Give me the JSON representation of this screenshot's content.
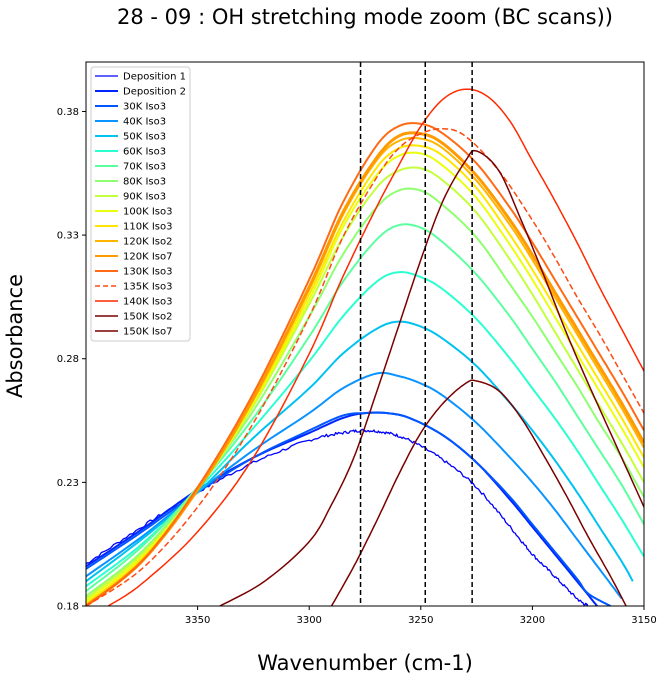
{
  "chart_data": {
    "type": "line",
    "title": "28 - 09 : OH stretching mode zoom (BC scans))",
    "xlabel": "Wavenumber (cm-1)",
    "ylabel": "Absorbance",
    "xlim": [
      3400,
      3150
    ],
    "ylim": [
      0.18,
      0.4
    ],
    "x_reversed": true,
    "xticks": [
      3350,
      3300,
      3250,
      3200,
      3150
    ],
    "xtick_labels": [
      "3350",
      "3300",
      "3250",
      "3200",
      "3150"
    ],
    "yticks": [
      0.18,
      0.23,
      0.28,
      0.33,
      0.38
    ],
    "ytick_labels": [
      "0.18",
      "0.23",
      "0.28",
      "0.33",
      "0.38"
    ],
    "grid": false,
    "legend_position": "top-left",
    "vertical_lines": [
      3277,
      3248,
      3227
    ],
    "series": [
      {
        "name": "Deposition 1",
        "color": "#0000ff",
        "width": 1.3,
        "dash": "solid",
        "noisy": true,
        "x": [
          3400,
          3375,
          3350,
          3325,
          3300,
          3285,
          3275,
          3265,
          3255,
          3240,
          3225,
          3210,
          3200,
          3190,
          3180,
          3175
        ],
        "y": [
          0.197,
          0.212,
          0.226,
          0.238,
          0.247,
          0.25,
          0.251,
          0.25,
          0.247,
          0.239,
          0.228,
          0.212,
          0.201,
          0.192,
          0.183,
          0.18
        ]
      },
      {
        "name": "Deposition 2",
        "color": "#0026ff",
        "width": 2.0,
        "dash": "solid",
        "x": [
          3400,
          3375,
          3350,
          3325,
          3300,
          3285,
          3275,
          3265,
          3255,
          3240,
          3225,
          3210,
          3200,
          3190,
          3180,
          3171
        ],
        "y": [
          0.196,
          0.211,
          0.227,
          0.24,
          0.25,
          0.256,
          0.258,
          0.258,
          0.256,
          0.249,
          0.238,
          0.223,
          0.212,
          0.201,
          0.19,
          0.18
        ]
      },
      {
        "name": "30K Iso3",
        "color": "#0056ff",
        "width": 2.0,
        "dash": "solid",
        "x": [
          3400,
          3375,
          3350,
          3325,
          3300,
          3285,
          3275,
          3265,
          3255,
          3240,
          3225,
          3210,
          3200,
          3190,
          3180,
          3175,
          3165
        ],
        "y": [
          0.195,
          0.21,
          0.226,
          0.24,
          0.251,
          0.257,
          0.258,
          0.258,
          0.256,
          0.249,
          0.238,
          0.224,
          0.213,
          0.202,
          0.191,
          0.185,
          0.18
        ]
      },
      {
        "name": "40K Iso3",
        "color": "#0a94ff",
        "width": 2.0,
        "dash": "solid",
        "x": [
          3400,
          3375,
          3350,
          3325,
          3300,
          3285,
          3270,
          3260,
          3250,
          3240,
          3225,
          3210,
          3200,
          3190,
          3180,
          3170,
          3160
        ],
        "y": [
          0.192,
          0.208,
          0.226,
          0.243,
          0.258,
          0.268,
          0.274,
          0.273,
          0.27,
          0.265,
          0.254,
          0.24,
          0.23,
          0.219,
          0.207,
          0.195,
          0.183
        ]
      },
      {
        "name": "50K Iso3",
        "color": "#00c2f0",
        "width": 2.0,
        "dash": "solid",
        "x": [
          3400,
          3375,
          3350,
          3325,
          3300,
          3285,
          3270,
          3260,
          3250,
          3240,
          3225,
          3210,
          3200,
          3190,
          3180,
          3170,
          3160,
          3155
        ],
        "y": [
          0.19,
          0.207,
          0.226,
          0.248,
          0.268,
          0.282,
          0.292,
          0.295,
          0.293,
          0.288,
          0.277,
          0.262,
          0.251,
          0.239,
          0.226,
          0.212,
          0.198,
          0.19
        ]
      },
      {
        "name": "60K Iso3",
        "color": "#2affd0",
        "width": 2.0,
        "dash": "solid",
        "x": [
          3400,
          3375,
          3350,
          3325,
          3300,
          3285,
          3270,
          3260,
          3250,
          3240,
          3225,
          3210,
          3200,
          3190,
          3180,
          3170,
          3160,
          3150
        ],
        "y": [
          0.188,
          0.205,
          0.227,
          0.252,
          0.279,
          0.297,
          0.311,
          0.315,
          0.313,
          0.308,
          0.296,
          0.28,
          0.268,
          0.256,
          0.243,
          0.229,
          0.215,
          0.2
        ]
      },
      {
        "name": "70K Iso3",
        "color": "#5cffa0",
        "width": 2.0,
        "dash": "solid",
        "x": [
          3400,
          3375,
          3350,
          3325,
          3300,
          3285,
          3270,
          3260,
          3250,
          3240,
          3225,
          3210,
          3200,
          3190,
          3180,
          3170,
          3160,
          3150
        ],
        "y": [
          0.186,
          0.204,
          0.228,
          0.256,
          0.289,
          0.311,
          0.328,
          0.334,
          0.333,
          0.327,
          0.314,
          0.297,
          0.284,
          0.271,
          0.257,
          0.243,
          0.229,
          0.213
        ]
      },
      {
        "name": "80K Iso3",
        "color": "#8fff70",
        "width": 2.0,
        "dash": "solid",
        "x": [
          3400,
          3375,
          3350,
          3325,
          3300,
          3285,
          3270,
          3260,
          3250,
          3240,
          3225,
          3210,
          3200,
          3190,
          3180,
          3170,
          3160,
          3150
        ],
        "y": [
          0.184,
          0.202,
          0.228,
          0.259,
          0.297,
          0.322,
          0.341,
          0.348,
          0.348,
          0.342,
          0.329,
          0.31,
          0.297,
          0.283,
          0.269,
          0.254,
          0.24,
          0.224
        ]
      },
      {
        "name": "90K Iso3",
        "color": "#c3ff3c",
        "width": 2.0,
        "dash": "solid",
        "x": [
          3400,
          3375,
          3350,
          3325,
          3300,
          3285,
          3270,
          3260,
          3250,
          3240,
          3225,
          3210,
          3200,
          3190,
          3180,
          3170,
          3160,
          3150
        ],
        "y": [
          0.183,
          0.201,
          0.227,
          0.261,
          0.302,
          0.329,
          0.349,
          0.356,
          0.357,
          0.352,
          0.339,
          0.32,
          0.306,
          0.291,
          0.276,
          0.261,
          0.246,
          0.23
        ]
      },
      {
        "name": "100K Iso3",
        "color": "#eaff0e",
        "width": 2.0,
        "dash": "solid",
        "x": [
          3400,
          3375,
          3350,
          3325,
          3300,
          3285,
          3270,
          3260,
          3250,
          3240,
          3225,
          3210,
          3200,
          3190,
          3180,
          3170,
          3160,
          3150
        ],
        "y": [
          0.182,
          0.2,
          0.227,
          0.262,
          0.304,
          0.333,
          0.354,
          0.362,
          0.363,
          0.358,
          0.345,
          0.326,
          0.312,
          0.297,
          0.282,
          0.267,
          0.252,
          0.236
        ]
      },
      {
        "name": "110K Iso3",
        "color": "#ffe600",
        "width": 2.0,
        "dash": "solid",
        "x": [
          3400,
          3375,
          3350,
          3325,
          3300,
          3285,
          3270,
          3260,
          3250,
          3240,
          3225,
          3210,
          3200,
          3190,
          3180,
          3170,
          3160,
          3150
        ],
        "y": [
          0.181,
          0.199,
          0.227,
          0.263,
          0.306,
          0.335,
          0.357,
          0.365,
          0.366,
          0.362,
          0.349,
          0.33,
          0.316,
          0.301,
          0.286,
          0.271,
          0.256,
          0.24
        ]
      },
      {
        "name": "120K Iso2",
        "color": "#ffb400",
        "width": 2.0,
        "dash": "solid",
        "x": [
          3400,
          3375,
          3350,
          3325,
          3300,
          3285,
          3270,
          3260,
          3250,
          3240,
          3225,
          3210,
          3200,
          3190,
          3180,
          3170,
          3160,
          3150
        ],
        "y": [
          0.18,
          0.198,
          0.227,
          0.264,
          0.308,
          0.338,
          0.36,
          0.368,
          0.369,
          0.365,
          0.352,
          0.334,
          0.32,
          0.305,
          0.29,
          0.275,
          0.26,
          0.244
        ]
      },
      {
        "name": "120K Iso7",
        "color": "#ff9a00",
        "width": 3.0,
        "dash": "solid",
        "x": [
          3400,
          3375,
          3350,
          3325,
          3300,
          3285,
          3270,
          3260,
          3250,
          3240,
          3225,
          3210,
          3200,
          3190,
          3180,
          3170,
          3160,
          3150
        ],
        "y": [
          0.18,
          0.198,
          0.227,
          0.264,
          0.309,
          0.339,
          0.361,
          0.37,
          0.371,
          0.367,
          0.354,
          0.336,
          0.322,
          0.307,
          0.292,
          0.277,
          0.262,
          0.246
        ]
      },
      {
        "name": "130K Iso3",
        "color": "#ff6a14",
        "width": 2.0,
        "dash": "solid",
        "x": [
          3400,
          3375,
          3350,
          3325,
          3300,
          3285,
          3270,
          3260,
          3250,
          3240,
          3225,
          3210,
          3200,
          3190,
          3180,
          3170,
          3160,
          3150
        ],
        "y": [
          0.18,
          0.198,
          0.228,
          0.266,
          0.312,
          0.343,
          0.366,
          0.374,
          0.375,
          0.371,
          0.359,
          0.341,
          0.327,
          0.312,
          0.297,
          0.282,
          0.267,
          0.251
        ]
      },
      {
        "name": "135K Iso3",
        "color": "#ff4a10",
        "width": 1.5,
        "dash": "dashed",
        "x": [
          3400,
          3375,
          3350,
          3325,
          3300,
          3285,
          3270,
          3260,
          3250,
          3240,
          3230,
          3215,
          3200,
          3190,
          3180,
          3170,
          3160,
          3150
        ],
        "y": [
          0.18,
          0.195,
          0.22,
          0.254,
          0.297,
          0.329,
          0.353,
          0.365,
          0.371,
          0.373,
          0.37,
          0.356,
          0.336,
          0.321,
          0.305,
          0.29,
          0.274,
          0.258
        ]
      },
      {
        "name": "140K Iso3",
        "color": "#ff2a00",
        "width": 1.5,
        "dash": "solid",
        "x": [
          3390,
          3375,
          3350,
          3325,
          3300,
          3285,
          3270,
          3260,
          3250,
          3240,
          3230,
          3220,
          3210,
          3200,
          3190,
          3180,
          3170,
          3160,
          3150
        ],
        "y": [
          0.18,
          0.189,
          0.21,
          0.24,
          0.282,
          0.313,
          0.341,
          0.358,
          0.374,
          0.385,
          0.389,
          0.386,
          0.376,
          0.36,
          0.344,
          0.327,
          0.309,
          0.292,
          0.275
        ]
      },
      {
        "name": "150K Iso2",
        "color": "#7a0000",
        "width": 1.5,
        "dash": "solid",
        "x": [
          3290,
          3280,
          3270,
          3260,
          3250,
          3240,
          3230,
          3225,
          3215,
          3205,
          3195,
          3185,
          3175,
          3165,
          3158
        ],
        "y": [
          0.18,
          0.196,
          0.214,
          0.233,
          0.25,
          0.262,
          0.27,
          0.271,
          0.267,
          0.256,
          0.241,
          0.225,
          0.208,
          0.192,
          0.18
        ]
      },
      {
        "name": "150K Iso7",
        "color": "#7a0000",
        "width": 1.5,
        "dash": "solid",
        "x": [
          3340,
          3320,
          3300,
          3290,
          3280,
          3270,
          3260,
          3250,
          3240,
          3230,
          3225,
          3215,
          3205,
          3195,
          3185,
          3175,
          3165,
          3150
        ],
        "y": [
          0.18,
          0.19,
          0.206,
          0.221,
          0.24,
          0.266,
          0.293,
          0.32,
          0.344,
          0.36,
          0.364,
          0.356,
          0.336,
          0.314,
          0.291,
          0.27,
          0.25,
          0.22
        ]
      }
    ]
  }
}
